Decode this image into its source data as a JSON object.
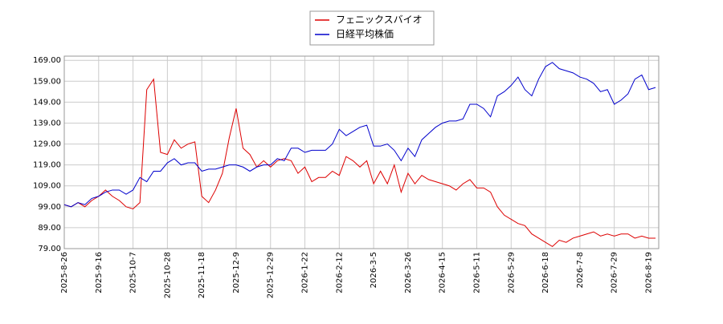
{
  "chart_data": {
    "type": "line",
    "x": [
      "2025-8-26",
      null,
      null,
      null,
      null,
      "2025-9-16",
      null,
      null,
      null,
      null,
      "2025-10-7",
      null,
      null,
      null,
      null,
      "2025-10-28",
      null,
      null,
      null,
      null,
      "2025-11-18",
      null,
      null,
      null,
      null,
      "2025-12-9",
      null,
      null,
      null,
      null,
      "2025-12-29",
      null,
      null,
      null,
      null,
      "2026-1-22",
      null,
      null,
      null,
      null,
      "2026-2-12",
      null,
      null,
      null,
      null,
      "2026-3-5",
      null,
      null,
      null,
      null,
      "2026-3-26",
      null,
      null,
      null,
      null,
      "2026-4-15",
      null,
      null,
      null,
      null,
      "2026-5-11",
      null,
      null,
      null,
      null,
      "2026-5-29",
      null,
      null,
      null,
      null,
      "2026-6-18",
      null,
      null,
      null,
      null,
      "2026-7-8",
      null,
      null,
      null,
      null,
      "2026-7-29",
      null,
      null,
      null,
      null,
      "2026-8-19",
      null
    ],
    "series": [
      {
        "name": "フェニックスバイオ",
        "color": "#dd0000",
        "values": [
          100,
          99,
          101,
          99,
          102,
          104,
          107,
          104,
          102,
          99,
          98,
          101,
          155,
          160,
          125,
          124,
          131,
          127,
          129,
          130,
          104,
          101,
          107,
          115,
          132,
          146,
          127,
          124,
          118,
          121,
          118,
          121,
          122,
          121,
          115,
          118,
          111,
          113,
          113,
          116,
          114,
          123,
          121,
          118,
          121,
          110,
          116,
          110,
          119,
          106,
          115,
          110,
          114,
          112,
          111,
          110,
          109,
          107,
          110,
          112,
          108,
          108,
          106,
          99,
          95,
          93,
          91,
          90,
          86,
          84,
          82,
          80,
          83,
          82,
          84,
          85,
          86,
          87,
          85,
          86,
          85,
          86,
          86,
          84,
          85,
          84,
          84
        ]
      },
      {
        "name": "日経平均株価",
        "color": "#0000cc",
        "values": [
          100,
          99,
          101,
          100,
          103,
          104,
          106,
          107,
          107,
          105,
          107,
          113,
          111,
          116,
          116,
          120,
          122,
          119,
          120,
          120,
          116,
          117,
          117,
          118,
          119,
          119,
          118,
          116,
          118,
          119,
          119,
          122,
          121,
          127,
          127,
          125,
          126,
          126,
          126,
          129,
          136,
          133,
          135,
          137,
          138,
          128,
          128,
          129,
          126,
          121,
          127,
          123,
          131,
          134,
          137,
          139,
          140,
          140,
          141,
          148,
          148,
          146,
          142,
          152,
          154,
          157,
          161,
          155,
          152,
          160,
          166,
          168,
          165,
          164,
          163,
          161,
          160,
          158,
          154,
          155,
          148,
          150,
          153,
          160,
          162,
          155,
          156
        ]
      }
    ],
    "ylim": [
      79,
      171
    ],
    "yticks": [
      {
        "value": 79,
        "label": "79.00"
      },
      {
        "value": 89,
        "label": "89.00"
      },
      {
        "value": 99,
        "label": "99.00"
      },
      {
        "value": 109,
        "label": "109.00"
      },
      {
        "value": 119,
        "label": "119.00"
      },
      {
        "value": 129,
        "label": "129.00"
      },
      {
        "value": 139,
        "label": "139.00"
      },
      {
        "value": 149,
        "label": "149.00"
      },
      {
        "value": 159,
        "label": "159.00"
      },
      {
        "value": 169,
        "label": "169.00"
      }
    ],
    "grid": true
  }
}
